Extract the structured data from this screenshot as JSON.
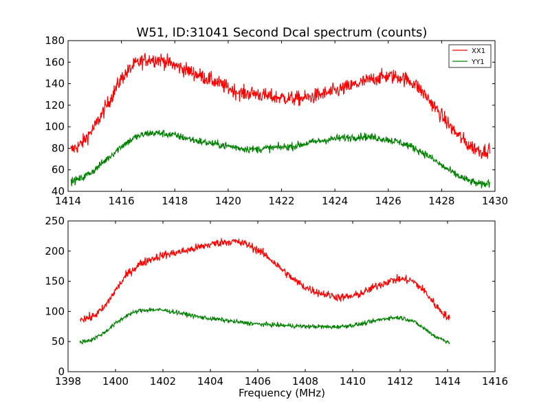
{
  "figure": {
    "title": "W51, ID:31041 Second Dcal spectrum (counts)",
    "xlabel": "Frequency (MHz)"
  },
  "chart_data": [
    {
      "type": "line",
      "xlim": [
        1414,
        1430
      ],
      "ylim": [
        40,
        180
      ],
      "xticks": [
        1414,
        1416,
        1418,
        1420,
        1422,
        1424,
        1426,
        1428,
        1430
      ],
      "yticks": [
        40,
        60,
        80,
        100,
        120,
        140,
        160,
        180
      ],
      "grid": false,
      "legend": "top-right",
      "series": [
        {
          "name": "XX1",
          "color": "#ff0000",
          "noise": 3.5,
          "x": [
            1414.1,
            1414.5,
            1415.0,
            1415.5,
            1416.0,
            1416.5,
            1417.0,
            1417.5,
            1418.0,
            1418.5,
            1419.0,
            1419.5,
            1420.0,
            1420.5,
            1421.0,
            1421.5,
            1422.0,
            1422.5,
            1423.0,
            1423.5,
            1424.0,
            1424.5,
            1425.0,
            1425.5,
            1426.0,
            1426.5,
            1427.0,
            1427.5,
            1428.0,
            1428.5,
            1429.0,
            1429.5,
            1429.8
          ],
          "y": [
            78,
            84,
            100,
            122,
            145,
            158,
            163,
            162,
            157,
            152,
            147,
            142,
            136,
            131,
            131,
            128,
            127,
            126,
            127,
            130,
            133,
            137,
            141,
            145,
            147,
            146,
            140,
            126,
            110,
            95,
            83,
            77,
            79
          ]
        },
        {
          "name": "YY1",
          "color": "#008000",
          "noise": 1.8,
          "x": [
            1414.1,
            1414.5,
            1415.0,
            1415.5,
            1416.0,
            1416.5,
            1417.0,
            1417.5,
            1418.0,
            1418.5,
            1419.0,
            1419.5,
            1420.0,
            1420.5,
            1421.0,
            1421.5,
            1422.0,
            1422.5,
            1423.0,
            1423.5,
            1424.0,
            1424.5,
            1425.0,
            1425.5,
            1426.0,
            1426.5,
            1427.0,
            1427.5,
            1428.0,
            1428.5,
            1429.0,
            1429.5,
            1429.8
          ],
          "y": [
            49,
            52,
            60,
            71,
            82,
            90,
            94,
            94,
            92,
            89,
            86,
            84,
            82,
            80,
            79,
            80,
            81,
            82,
            85,
            87,
            89,
            90,
            91,
            90,
            88,
            85,
            80,
            73,
            64,
            56,
            50,
            46,
            48
          ]
        }
      ]
    },
    {
      "type": "line",
      "xlim": [
        1398,
        1416
      ],
      "ylim": [
        0,
        250
      ],
      "xticks": [
        1398,
        1400,
        1402,
        1404,
        1406,
        1408,
        1410,
        1412,
        1414,
        1416
      ],
      "yticks": [
        0,
        50,
        100,
        150,
        200,
        250
      ],
      "grid": false,
      "series": [
        {
          "color": "#ff0000",
          "noise": 3.5,
          "x": [
            1398.5,
            1399.0,
            1399.5,
            1400.0,
            1400.5,
            1401.0,
            1401.5,
            1402.0,
            1402.5,
            1403.0,
            1403.5,
            1404.0,
            1404.5,
            1405.0,
            1405.5,
            1406.0,
            1406.5,
            1407.0,
            1407.5,
            1408.0,
            1408.5,
            1409.0,
            1409.5,
            1410.0,
            1410.5,
            1411.0,
            1411.5,
            1412.0,
            1412.5,
            1413.0,
            1413.5,
            1414.0,
            1414.1
          ],
          "y": [
            88,
            90,
            105,
            135,
            162,
            178,
            187,
            193,
            197,
            201,
            206,
            211,
            215,
            216,
            212,
            202,
            188,
            170,
            153,
            140,
            132,
            127,
            123,
            125,
            132,
            142,
            150,
            154,
            151,
            135,
            110,
            90,
            87
          ]
        },
        {
          "color": "#008000",
          "noise": 1.8,
          "x": [
            1398.5,
            1399.0,
            1399.5,
            1400.0,
            1400.5,
            1401.0,
            1401.5,
            1402.0,
            1402.5,
            1403.0,
            1403.5,
            1404.0,
            1404.5,
            1405.0,
            1405.5,
            1406.0,
            1406.5,
            1407.0,
            1407.5,
            1408.0,
            1408.5,
            1409.0,
            1409.5,
            1410.0,
            1410.5,
            1411.0,
            1411.5,
            1412.0,
            1412.5,
            1413.0,
            1413.5,
            1414.0,
            1414.1
          ],
          "y": [
            49,
            53,
            64,
            80,
            94,
            101,
            103,
            102,
            99,
            95,
            91,
            88,
            86,
            83,
            81,
            79,
            78,
            77,
            76,
            75,
            75,
            74,
            75,
            77,
            80,
            85,
            89,
            90,
            85,
            72,
            58,
            50,
            49
          ]
        }
      ]
    }
  ]
}
